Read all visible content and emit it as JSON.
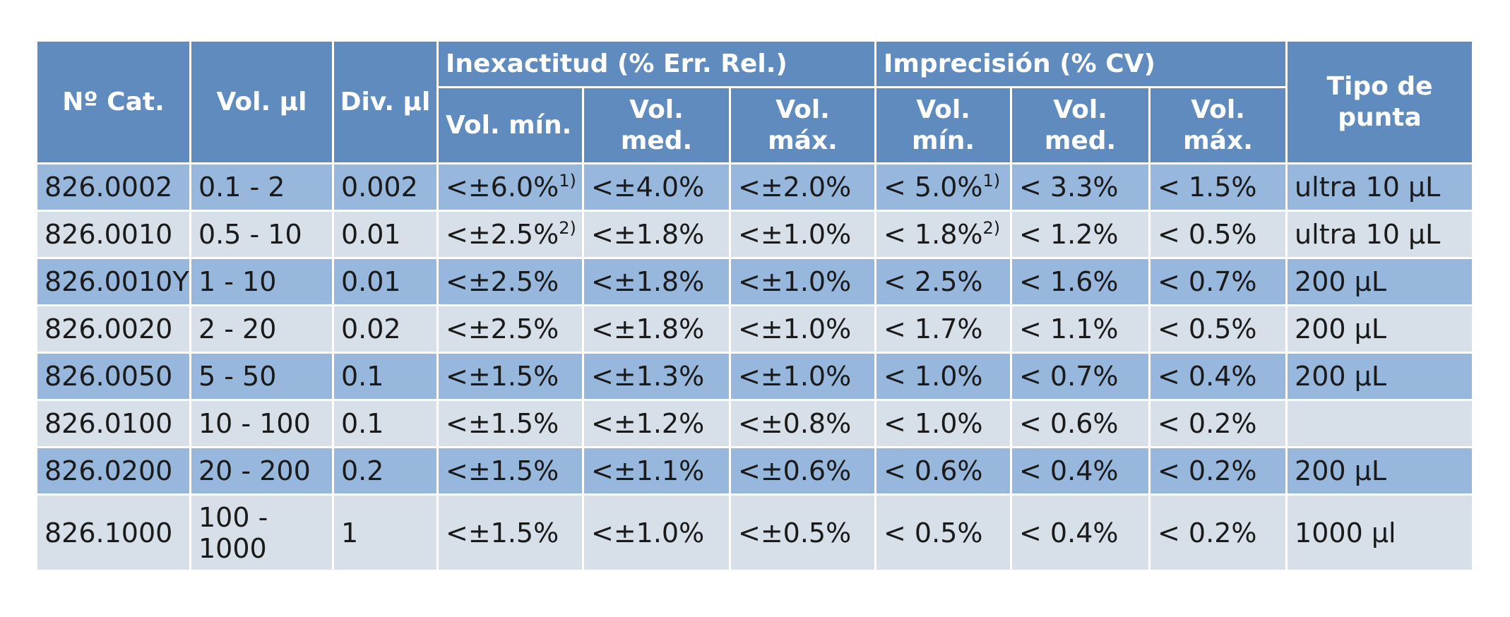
{
  "headers": {
    "cat": "Nº Cat.",
    "vol": "Vol. µl",
    "div": "Div. µl",
    "inexactitud": "Inexactitud (% Err. Rel.)",
    "imprecision": "Imprecisión (% CV)",
    "tipo": "Tipo de punta",
    "inex_min": "Vol. mín.",
    "inex_med": "Vol. med.",
    "inex_max": "Vol. máx.",
    "imp_min": "Vol. mín.",
    "imp_med": "Vol. med.",
    "imp_max": "Vol. máx."
  },
  "rows": [
    {
      "cat": "826.0002",
      "vol": "0.1 - 2",
      "div": "0.002",
      "inex_min": "<±6.0%",
      "inex_min_note": "1)",
      "inex_med": "<±4.0%",
      "inex_max": "<±2.0%",
      "imp_min": "< 5.0%",
      "imp_min_note": "1)",
      "imp_med": "< 3.3%",
      "imp_max": "< 1.5%",
      "tipo": "ultra 10 µL"
    },
    {
      "cat": "826.0010",
      "vol": "0.5 - 10",
      "div": "0.01",
      "inex_min": "<±2.5%",
      "inex_min_note": "2)",
      "inex_med": "<±1.8%",
      "inex_max": "<±1.0%",
      "imp_min": "< 1.8%",
      "imp_min_note": "2)",
      "imp_med": "< 1.2%",
      "imp_max": "< 0.5%",
      "tipo": "ultra 10 µL"
    },
    {
      "cat": "826.0010Y",
      "vol": "1 - 10",
      "div": "0.01",
      "inex_min": "<±2.5%",
      "inex_min_note": "",
      "inex_med": "<±1.8%",
      "inex_max": "<±1.0%",
      "imp_min": "< 2.5%",
      "imp_min_note": "",
      "imp_med": "< 1.6%",
      "imp_max": "< 0.7%",
      "tipo": "200 µL"
    },
    {
      "cat": "826.0020",
      "vol": "2 - 20",
      "div": "0.02",
      "inex_min": "<±2.5%",
      "inex_min_note": "",
      "inex_med": "<±1.8%",
      "inex_max": "<±1.0%",
      "imp_min": "< 1.7%",
      "imp_min_note": "",
      "imp_med": "< 1.1%",
      "imp_max": "< 0.5%",
      "tipo": "200 µL"
    },
    {
      "cat": "826.0050",
      "vol": "5 - 50",
      "div": "0.1",
      "inex_min": "<±1.5%",
      "inex_min_note": "",
      "inex_med": "<±1.3%",
      "inex_max": "<±1.0%",
      "imp_min": "< 1.0%",
      "imp_min_note": "",
      "imp_med": "< 0.7%",
      "imp_max": "< 0.4%",
      "tipo": "200 µL"
    },
    {
      "cat": "826.0100",
      "vol": "10 - 100",
      "div": "0.1",
      "inex_min": "<±1.5%",
      "inex_min_note": "",
      "inex_med": "<±1.2%",
      "inex_max": "<±0.8%",
      "imp_min": "< 1.0%",
      "imp_min_note": "",
      "imp_med": "< 0.6%",
      "imp_max": "< 0.2%",
      "tipo": ""
    },
    {
      "cat": "826.0200",
      "vol": "20 - 200",
      "div": "0.2",
      "inex_min": "<±1.5%",
      "inex_min_note": "",
      "inex_med": "<±1.1%",
      "inex_max": "<±0.6%",
      "imp_min": "< 0.6%",
      "imp_min_note": "",
      "imp_med": "< 0.4%",
      "imp_max": "< 0.2%",
      "tipo": "200 µL"
    },
    {
      "cat": "826.1000",
      "vol": "100 - 1000",
      "div": "1",
      "inex_min": "<±1.5%",
      "inex_min_note": "",
      "inex_med": "<±1.0%",
      "inex_max": "<±0.5%",
      "imp_min": "< 0.5%",
      "imp_min_note": "",
      "imp_med": "< 0.4%",
      "imp_max": "< 0.2%",
      "tipo": "1000 µl"
    }
  ],
  "colors": {
    "header": "#5f8bbf",
    "row_odd": "#97b7dd",
    "row_even": "#d7dfe8"
  }
}
